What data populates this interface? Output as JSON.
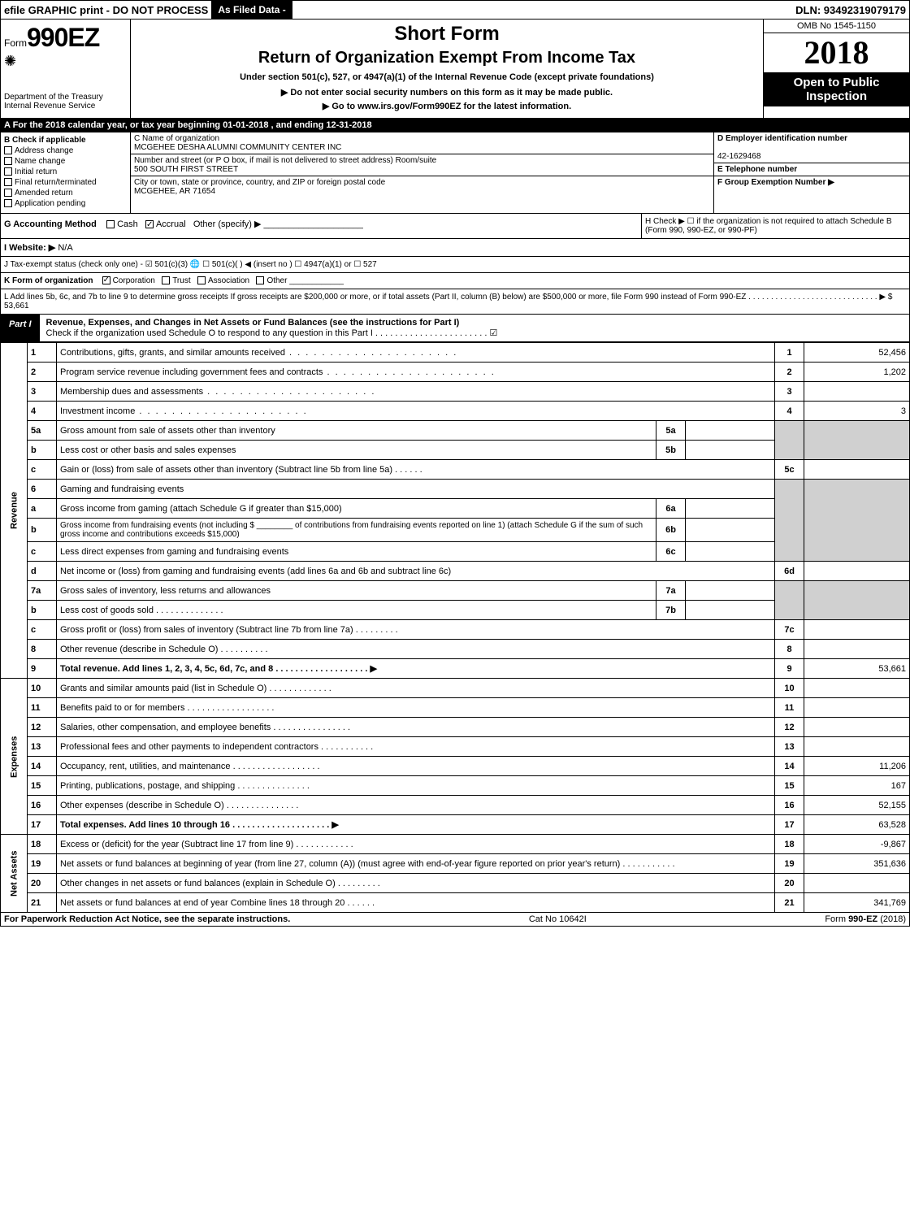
{
  "top": {
    "efile": "efile GRAPHIC print - DO NOT PROCESS",
    "asfiled": "As Filed Data -",
    "dln": "DLN: 93492319079179"
  },
  "header": {
    "form_prefix": "Form",
    "form_number": "990EZ",
    "dept": "Department of the Treasury\nInternal Revenue Service",
    "short_form": "Short Form",
    "title": "Return of Organization Exempt From Income Tax",
    "under": "Under section 501(c), 527, or 4947(a)(1) of the Internal Revenue Code (except private foundations)",
    "arrow1": "▶ Do not enter social security numbers on this form as it may be made public.",
    "arrow2": "▶ Go to www.irs.gov/Form990EZ for the latest information.",
    "omb": "OMB No 1545-1150",
    "year": "2018",
    "open": "Open to Public Inspection"
  },
  "rowA": "A  For the 2018 calendar year, or tax year beginning 01-01-2018          , and ending 12-31-2018",
  "sectionB": {
    "title": "B  Check if applicable",
    "items": [
      "Address change",
      "Name change",
      "Initial return",
      "Final return/terminated",
      "Amended return",
      "Application pending"
    ]
  },
  "sectionC": {
    "name_label": "C Name of organization",
    "name": "MCGEHEE DESHA ALUMNI COMMUNITY CENTER INC",
    "street_label": "Number and street (or P O  box, if mail is not delivered to street address)  Room/suite",
    "street": "500 SOUTH FIRST STREET",
    "city_label": "City or town, state or province, country, and ZIP or foreign postal code",
    "city": "MCGEHEE, AR  71654"
  },
  "sectionDEF": {
    "d_label": "D Employer identification number",
    "d_value": "42-1629468",
    "e_label": "E Telephone number",
    "e_value": "",
    "f_label": "F Group Exemption Number  ▶",
    "f_value": ""
  },
  "rowG": {
    "label": "G Accounting Method",
    "cash": "Cash",
    "accrual": "Accrual",
    "other": "Other (specify) ▶"
  },
  "rowH": {
    "text1": "H  Check ▶  ☐  if the organization is not required to attach Schedule B",
    "text2": "(Form 990, 990-EZ, or 990-PF)"
  },
  "rowI": {
    "label": "I Website: ▶",
    "value": "N/A"
  },
  "rowJ": "J Tax-exempt status (check only one) - ☑ 501(c)(3) 🌐 ☐ 501(c)( ) ◀ (insert no ) ☐ 4947(a)(1) or ☐ 527",
  "rowK": {
    "label": "K Form of organization",
    "items": [
      "Corporation",
      "Trust",
      "Association",
      "Other"
    ],
    "checked": 0
  },
  "rowL": {
    "text": "L Add lines 5b, 6c, and 7b to line 9 to determine gross receipts  If gross receipts are $200,000 or more, or if total assets (Part II, column (B) below) are $500,000 or more, file Form 990 instead of Form 990-EZ . . . . . . . . . . . . . . . . . . . . . . . . . . . . .  ▶",
    "value": "$ 53,661"
  },
  "part1": {
    "badge": "Part I",
    "title": "Revenue, Expenses, and Changes in Net Assets or Fund Balances (see the instructions for Part I)",
    "sub": "Check if the organization used Schedule O to respond to any question in this Part I . . . . . . . . . . . . . . . . . . . . . . . ☑"
  },
  "sections": {
    "revenue": "Revenue",
    "expenses": "Expenses",
    "netassets": "Net Assets"
  },
  "lines": {
    "1": {
      "desc": "Contributions, gifts, grants, and similar amounts received",
      "val": "52,456"
    },
    "2": {
      "desc": "Program service revenue including government fees and contracts",
      "val": "1,202"
    },
    "3": {
      "desc": "Membership dues and assessments",
      "val": ""
    },
    "4": {
      "desc": "Investment income",
      "val": "3"
    },
    "5a": {
      "desc": "Gross amount from sale of assets other than inventory",
      "inlab": "5a",
      "inval": ""
    },
    "5b": {
      "desc": "Less  cost or other basis and sales expenses",
      "inlab": "5b",
      "inval": ""
    },
    "5c": {
      "desc": "Gain or (loss) from sale of assets other than inventory (Subtract line 5b from line 5a)",
      "val": ""
    },
    "6": {
      "desc": "Gaming and fundraising events"
    },
    "6a": {
      "desc": "Gross income from gaming (attach Schedule G if greater than $15,000)",
      "inlab": "6a",
      "inval": ""
    },
    "6b": {
      "desc": "Gross income from fundraising events (not including $ ________ of contributions from fundraising events reported on line 1) (attach Schedule G if the sum of such gross income and contributions exceeds $15,000)",
      "inlab": "6b",
      "inval": ""
    },
    "6c": {
      "desc": "Less  direct expenses from gaming and fundraising events",
      "inlab": "6c",
      "inval": ""
    },
    "6d": {
      "desc": "Net income or (loss) from gaming and fundraising events (add lines 6a and 6b and subtract line 6c)",
      "val": ""
    },
    "7a": {
      "desc": "Gross sales of inventory, less returns and allowances",
      "inlab": "7a",
      "inval": ""
    },
    "7b": {
      "desc": "Less  cost of goods sold",
      "inlab": "7b",
      "inval": ""
    },
    "7c": {
      "desc": "Gross profit or (loss) from sales of inventory (Subtract line 7b from line 7a)",
      "val": ""
    },
    "8": {
      "desc": "Other revenue (describe in Schedule O)",
      "val": ""
    },
    "9": {
      "desc": "Total revenue. Add lines 1, 2, 3, 4, 5c, 6d, 7c, and 8   . . . . . . . . . . . . . . . . . . .  ▶",
      "val": "53,661",
      "bold": true
    },
    "10": {
      "desc": "Grants and similar amounts paid (list in Schedule O)",
      "val": ""
    },
    "11": {
      "desc": "Benefits paid to or for members",
      "val": ""
    },
    "12": {
      "desc": "Salaries, other compensation, and employee benefits",
      "val": ""
    },
    "13": {
      "desc": "Professional fees and other payments to independent contractors",
      "val": ""
    },
    "14": {
      "desc": "Occupancy, rent, utilities, and maintenance",
      "val": "11,206"
    },
    "15": {
      "desc": "Printing, publications, postage, and shipping",
      "val": "167"
    },
    "16": {
      "desc": "Other expenses (describe in Schedule O)",
      "val": "52,155"
    },
    "17": {
      "desc": "Total expenses. Add lines 10 through 16     . . . . . . . . . . . . . . . . . . . .  ▶",
      "val": "63,528",
      "bold": true
    },
    "18": {
      "desc": "Excess or (deficit) for the year (Subtract line 17 from line 9)",
      "val": "-9,867"
    },
    "19": {
      "desc": "Net assets or fund balances at beginning of year (from line 27, column (A)) (must agree with end-of-year figure reported on prior year's return)",
      "val": "351,636"
    },
    "20": {
      "desc": "Other changes in net assets or fund balances (explain in Schedule O)",
      "val": ""
    },
    "21": {
      "desc": "Net assets or fund balances at end of year  Combine lines 18 through 20",
      "val": "341,769"
    }
  },
  "footer": {
    "left": "For Paperwork Reduction Act Notice, see the separate instructions.",
    "center": "Cat No  10642I",
    "right": "Form 990-EZ (2018)"
  },
  "colors": {
    "black": "#000000",
    "white": "#ffffff",
    "shade": "#d0d0d0"
  }
}
